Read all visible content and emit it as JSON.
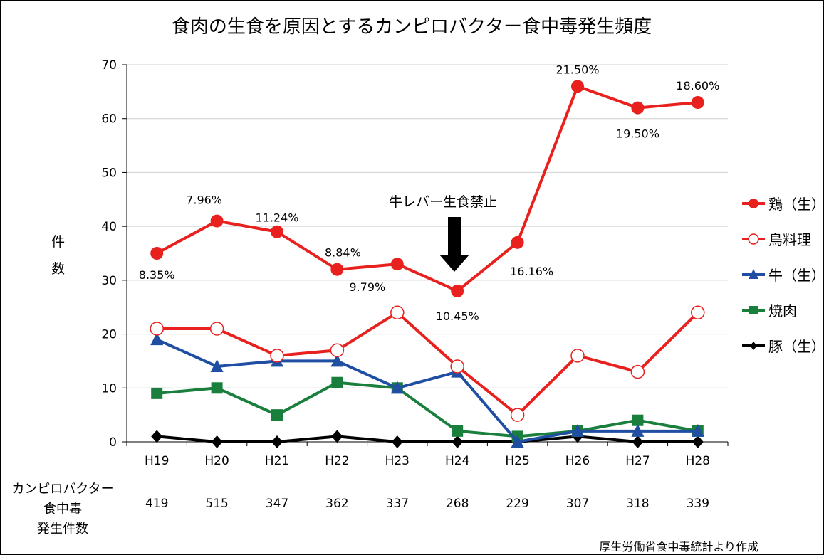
{
  "chart_data": {
    "type": "line",
    "title": "食肉の生食を原因とするカンピロバクター食中毒発生頻度",
    "ylabel": "件　数",
    "xlabel": "",
    "ylim": [
      0,
      70
    ],
    "yticks": [
      0,
      10,
      20,
      30,
      40,
      50,
      60,
      70
    ],
    "grid": true,
    "legend_position": "right",
    "categories": [
      "H19",
      "H20",
      "H21",
      "H22",
      "H23",
      "H24",
      "H25",
      "H26",
      "H27",
      "H28"
    ],
    "series": [
      {
        "name": "鶏（生）",
        "color": "#e8211e",
        "marker": "filled-circle",
        "values": [
          35,
          41,
          39,
          32,
          33,
          28,
          37,
          66,
          62,
          63
        ]
      },
      {
        "name": "鳥料理",
        "color": "#e8211e",
        "marker": "open-circle",
        "values": [
          21,
          21,
          16,
          17,
          24,
          14,
          5,
          16,
          13,
          24
        ]
      },
      {
        "name": "牛（生）",
        "color": "#1f4ea3",
        "marker": "triangle",
        "values": [
          19,
          14,
          15,
          15,
          10,
          13,
          0,
          2,
          2,
          2
        ]
      },
      {
        "name": "焼肉",
        "color": "#1a7f3c",
        "marker": "square",
        "values": [
          9,
          10,
          5,
          11,
          10,
          2,
          1,
          2,
          4,
          2
        ]
      },
      {
        "name": "豚（生）",
        "color": "#000000",
        "marker": "diamond",
        "values": [
          1,
          0,
          0,
          1,
          0,
          0,
          0,
          1,
          0,
          0
        ]
      }
    ],
    "point_labels": [
      "8.35%",
      "7.96%",
      "11.24%",
      "8.84%",
      "9.79%",
      "10.45%",
      "16.16%",
      "21.50%",
      "19.50%",
      "18.60%"
    ],
    "annotation": "牛レバー生食禁止",
    "table": {
      "row_label": [
        "カンピロバクター",
        "食中毒",
        "発生件数"
      ],
      "values": [
        "419",
        "515",
        "347",
        "362",
        "337",
        "268",
        "229",
        "307",
        "318",
        "339"
      ]
    },
    "source": "厚生労働省食中毒統計より作成"
  }
}
